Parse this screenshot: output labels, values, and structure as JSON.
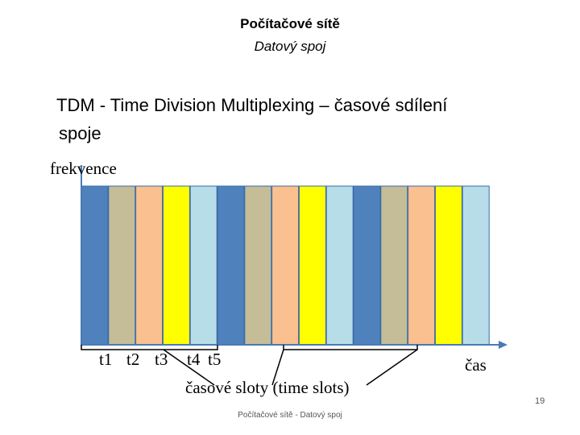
{
  "header": {
    "title": "Počítačové sítě",
    "subtitle": "Datový spoj"
  },
  "heading": {
    "line1": "TDM - Time Division Multiplexing – časové sdílení",
    "line2": "spoje"
  },
  "diagram": {
    "y_label": "frekvence",
    "x_label": "čas",
    "slot_caption": "časové sloty (time slots)",
    "time_labels": [
      "t1",
      "t2",
      "t3",
      "t4",
      "t5"
    ],
    "slot_colors": [
      "#4f81bd",
      "#c4bd97",
      "#fac090",
      "#ffff00",
      "#b7dde8"
    ],
    "slot_color_names": [
      "blue",
      "tan",
      "peach",
      "yellow",
      "light-blue"
    ],
    "frame_count": 3
  },
  "footer": {
    "text": "Počítačové sítě - Datový spoj",
    "page_number": "19"
  }
}
